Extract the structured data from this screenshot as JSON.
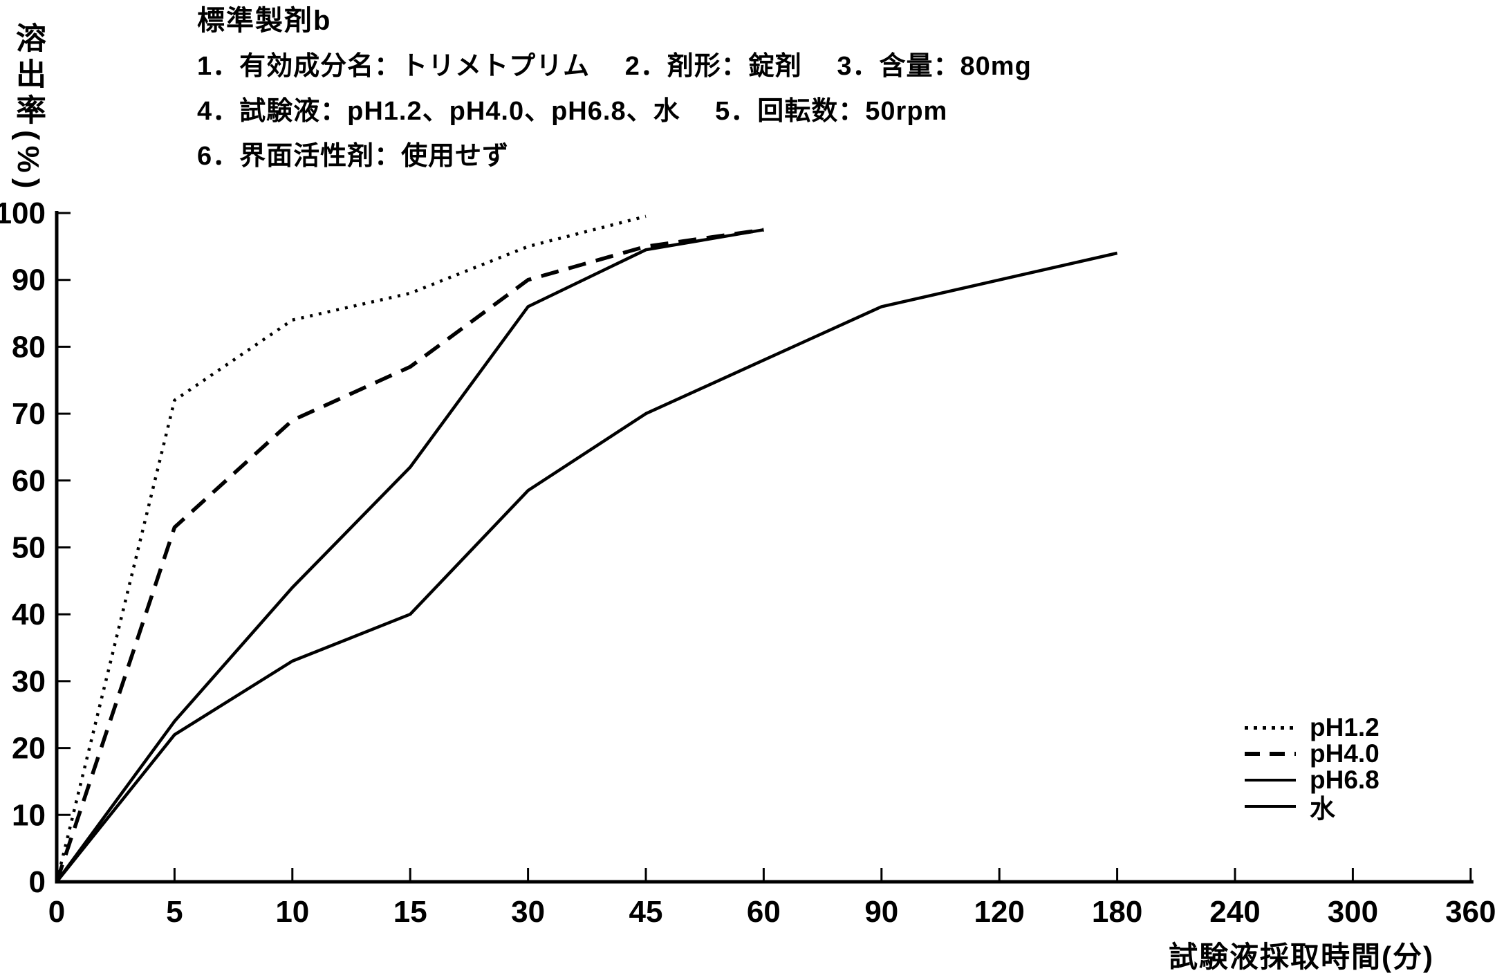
{
  "header": {
    "title": "標準製剤b",
    "info_lines": [
      "1．有効成分名：トリメトプリム　 2．剤形：錠剤　 3．含量：80mg",
      "4．試験液：pH1.2、pH4.0、pH6.8、水　 5．回転数：50rpm",
      "6．界面活性剤：使用せず"
    ]
  },
  "chart_data": {
    "type": "line",
    "title": "標準製剤b",
    "xlabel": "試験液採取時間(分)",
    "ylabel": "溶出率(%)",
    "categories": [
      0,
      5,
      10,
      15,
      30,
      45,
      60,
      90,
      120,
      180,
      240,
      300,
      360
    ],
    "y_ticks": [
      0,
      10,
      20,
      30,
      40,
      50,
      60,
      70,
      80,
      90,
      100
    ],
    "ylim": [
      0,
      100
    ],
    "grid": false,
    "legend_position": "lower-right",
    "series": [
      {
        "name": "pH1.2",
        "style": "dotted",
        "points": [
          [
            0,
            0
          ],
          [
            5,
            72
          ],
          [
            10,
            84
          ],
          [
            15,
            88
          ],
          [
            30,
            95
          ],
          [
            45,
            99.5
          ]
        ]
      },
      {
        "name": "pH4.0",
        "style": "dashed",
        "points": [
          [
            0,
            0
          ],
          [
            5,
            53
          ],
          [
            10,
            69
          ],
          [
            15,
            77
          ],
          [
            30,
            90
          ],
          [
            45,
            95
          ],
          [
            60,
            97.5
          ]
        ]
      },
      {
        "name": "pH6.8",
        "style": "solid",
        "points": [
          [
            0,
            0
          ],
          [
            5,
            24
          ],
          [
            10,
            44
          ],
          [
            15,
            62
          ],
          [
            30,
            86
          ],
          [
            45,
            94.5
          ],
          [
            60,
            97.5
          ]
        ]
      },
      {
        "name": "水",
        "style": "solid",
        "points": [
          [
            0,
            0
          ],
          [
            5,
            22
          ],
          [
            10,
            33
          ],
          [
            15,
            40
          ],
          [
            30,
            58.5
          ],
          [
            45,
            70
          ],
          [
            60,
            78
          ],
          [
            90,
            86
          ],
          [
            120,
            90
          ],
          [
            180,
            94
          ]
        ]
      }
    ]
  }
}
